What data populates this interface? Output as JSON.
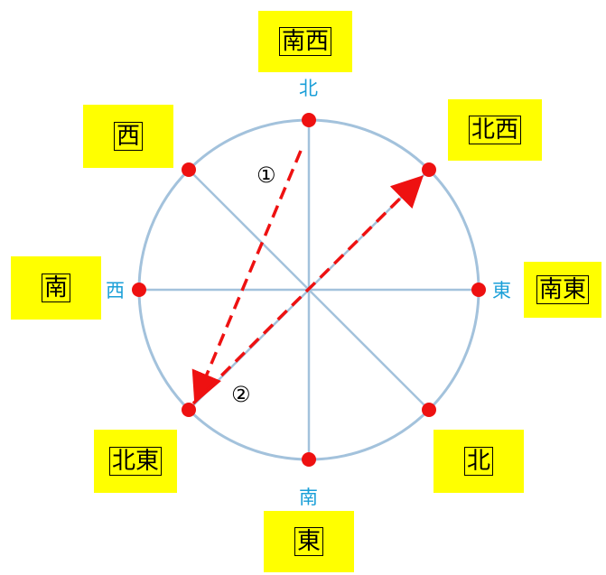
{
  "compass": {
    "north": "北",
    "east": "東",
    "south": "南",
    "west": "西"
  },
  "boxes": {
    "top": "南西",
    "top_left": "西",
    "top_right": "北西",
    "left": "南",
    "right": "南東",
    "bottom_left": "北東",
    "bottom_right": "北",
    "bottom": "東"
  },
  "steps": {
    "first": "①",
    "second": "②"
  },
  "colors": {
    "circle": "#a3c2dc",
    "point": "#ee1111",
    "arrow": "#ee1111",
    "label": "#1a9fd8",
    "box": "#ffff00"
  }
}
